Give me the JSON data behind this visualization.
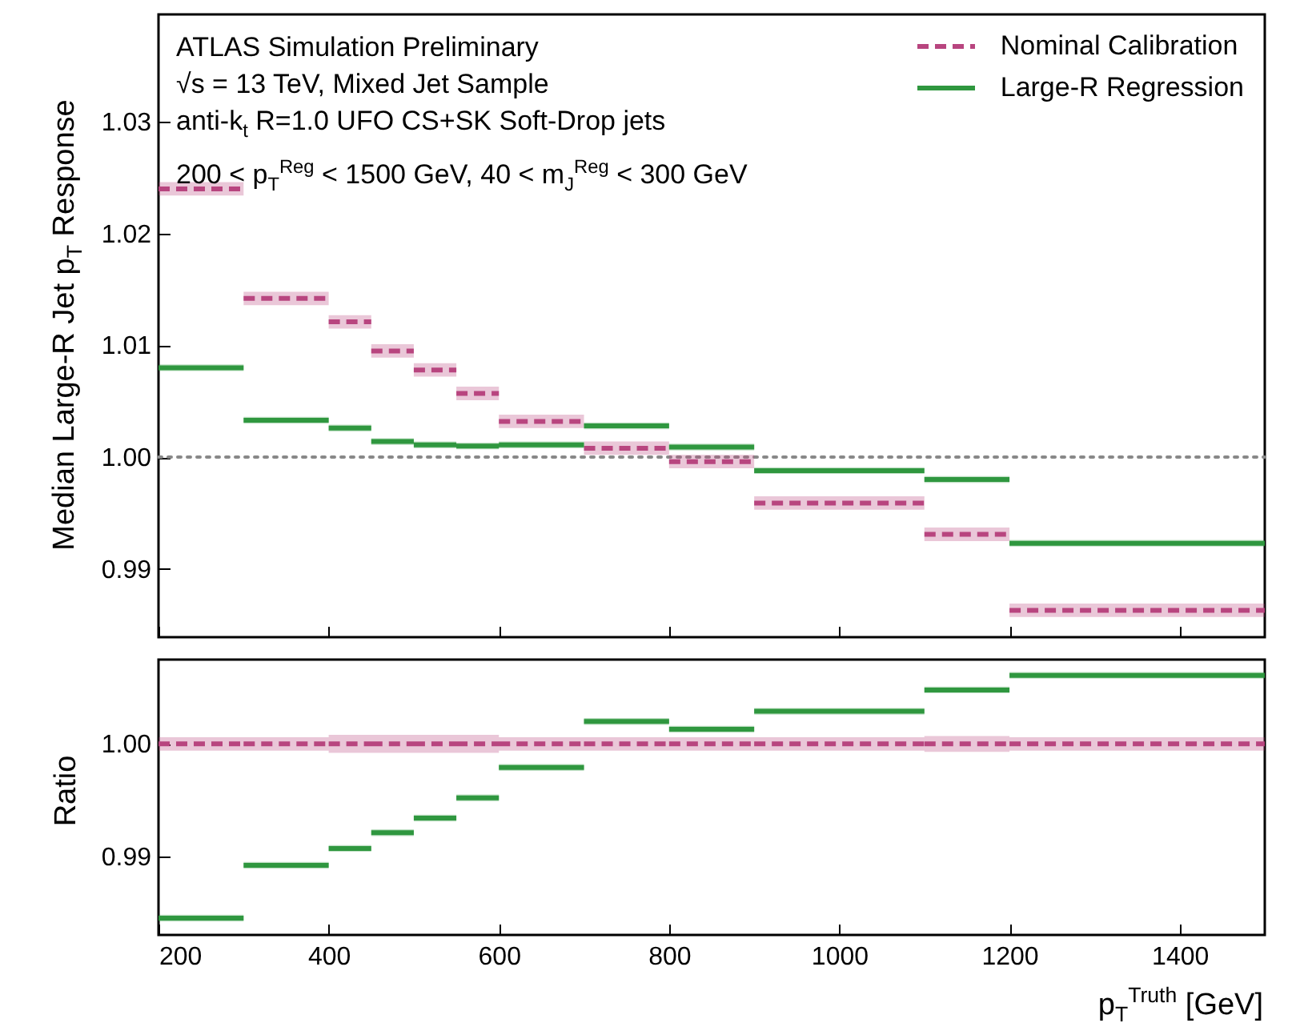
{
  "chart_data": [
    {
      "type": "line",
      "x": [
        200,
        300,
        null,
        300,
        400,
        null,
        400,
        450,
        null,
        450,
        500,
        null,
        500,
        550,
        null,
        550,
        600,
        null,
        600,
        700,
        null,
        700,
        800,
        null,
        800,
        900,
        null,
        900,
        1100,
        null,
        1100,
        1200,
        null,
        1200,
        1500
      ],
      "series": [
        {
          "name": "Nominal Calibration",
          "color": "#b8457f",
          "line_style": "dashed",
          "values": [
            1.024,
            1.024,
            null,
            1.0142,
            1.0142,
            null,
            1.0121,
            1.0121,
            null,
            1.0095,
            1.0095,
            null,
            1.0078,
            1.0078,
            null,
            1.0057,
            1.0057,
            null,
            1.0032,
            1.0032,
            null,
            1.0008,
            1.0008,
            null,
            0.9996,
            0.9996,
            null,
            0.9959,
            0.9959,
            null,
            0.9931,
            0.9931,
            null,
            0.9863,
            0.9863
          ],
          "lower": [
            1.0234,
            1.0234,
            null,
            1.0136,
            1.0136,
            null,
            1.0115,
            1.0115,
            null,
            1.0089,
            1.0089,
            null,
            1.0072,
            1.0072,
            null,
            1.0051,
            1.0051,
            null,
            1.0026,
            1.0026,
            null,
            1.0002,
            1.0002,
            null,
            0.999,
            0.999,
            null,
            0.9953,
            0.9953,
            null,
            0.9925,
            0.9925,
            null,
            0.9857,
            0.9857
          ],
          "upper": [
            1.0246,
            1.0246,
            null,
            1.0148,
            1.0148,
            null,
            1.0127,
            1.0127,
            null,
            1.0101,
            1.0101,
            null,
            1.0084,
            1.0084,
            null,
            1.0063,
            1.0063,
            null,
            1.0038,
            1.0038,
            null,
            1.0014,
            1.0014,
            null,
            1.0002,
            1.0002,
            null,
            0.9965,
            0.9965,
            null,
            0.9937,
            0.9937,
            null,
            0.9869,
            0.9869
          ]
        },
        {
          "name": "Large-R Regression",
          "color": "#2f973f",
          "line_style": "solid",
          "values": [
            1.008,
            1.008,
            null,
            1.0033,
            1.0033,
            null,
            1.0026,
            1.0026,
            null,
            1.0014,
            1.0014,
            null,
            1.0011,
            1.0011,
            null,
            1.001,
            1.001,
            null,
            1.0011,
            1.0011,
            null,
            1.0028,
            1.0028,
            null,
            1.0009,
            1.0009,
            null,
            0.9988,
            0.9988,
            null,
            0.998,
            0.998,
            null,
            0.9923,
            0.9923
          ],
          "lower": [
            1.0077,
            1.0077,
            null,
            1.003,
            1.003,
            null,
            1.0023,
            1.0023,
            null,
            1.0011,
            1.0011,
            null,
            1.0008,
            1.0008,
            null,
            1.0007,
            1.0007,
            null,
            1.0008,
            1.0008,
            null,
            1.0025,
            1.0025,
            null,
            1.0006,
            1.0006,
            null,
            0.9985,
            0.9985,
            null,
            0.9977,
            0.9977,
            null,
            0.992,
            0.992
          ],
          "upper": [
            1.0083,
            1.0083,
            null,
            1.0036,
            1.0036,
            null,
            1.0029,
            1.0029,
            null,
            1.0017,
            1.0017,
            null,
            1.0014,
            1.0014,
            null,
            1.0013,
            1.0013,
            null,
            1.0014,
            1.0014,
            null,
            1.0031,
            1.0031,
            null,
            1.0012,
            1.0012,
            null,
            0.9991,
            0.9991,
            null,
            0.9983,
            0.9983,
            null,
            0.9926,
            0.9926
          ]
        }
      ],
      "xlim": [
        200,
        1500
      ],
      "xticks": [
        200,
        400,
        600,
        800,
        1000,
        1200,
        1400
      ],
      "ylim": [
        0.9839,
        1.0396
      ],
      "yticks": [
        {
          "value": 0.99,
          "label": "0.99"
        },
        {
          "value": 1.0,
          "label": "1.00"
        },
        {
          "value": 1.01,
          "label": "1.01"
        },
        {
          "value": 1.02,
          "label": "1.02"
        },
        {
          "value": 1.03,
          "label": "1.03"
        }
      ],
      "ylabel": "Median Large-R Jet p$_{T}$ Response",
      "annotations": [
        "ATLAS Simulation Preliminary",
        "√s = 13 TeV, Mixed Jet Sample",
        "anti-k$_{t}$ R=1.0 UFO CS+SK Soft-Drop jets",
        "200 < p$_{T}$$^{Reg}$ < 1500 GeV, 40 < m$_{J}$$^{Reg}$ < 300 GeV"
      ],
      "ref_lines": [
        {
          "axis": "y",
          "value": 1.0,
          "color": "#888888",
          "line_style": "dotted"
        }
      ],
      "legend": "top right",
      "tick_labels": "y"
    },
    {
      "type": "line",
      "x": [
        200,
        300,
        null,
        300,
        400,
        null,
        400,
        450,
        null,
        450,
        500,
        null,
        500,
        550,
        null,
        550,
        600,
        null,
        600,
        700,
        null,
        700,
        800,
        null,
        800,
        900,
        null,
        900,
        1100,
        null,
        1100,
        1200,
        null,
        1200,
        1500
      ],
      "series": [
        {
          "color": "#b8457f",
          "line_style": "dashed",
          "values": [
            1.0,
            1.0,
            null,
            1.0,
            1.0,
            null,
            1.0,
            1.0,
            null,
            1.0,
            1.0,
            null,
            1.0,
            1.0,
            null,
            1.0,
            1.0,
            null,
            1.0,
            1.0,
            null,
            1.0,
            1.0,
            null,
            1.0,
            1.0,
            null,
            1.0,
            1.0,
            null,
            1.0,
            1.0,
            null,
            1.0,
            1.0
          ],
          "lower": [
            0.9994,
            0.9994,
            null,
            0.9994,
            0.9994,
            null,
            0.9992,
            0.9992,
            null,
            0.9992,
            0.9992,
            null,
            0.9992,
            0.9992,
            null,
            0.9992,
            0.9992,
            null,
            0.9994,
            0.9994,
            null,
            0.9994,
            0.9994,
            null,
            0.9994,
            0.9994,
            null,
            0.9994,
            0.9994,
            null,
            0.9993,
            0.9993,
            null,
            0.9994,
            0.9994
          ],
          "upper": [
            1.0006,
            1.0006,
            null,
            1.0006,
            1.0006,
            null,
            1.0008,
            1.0008,
            null,
            1.0008,
            1.0008,
            null,
            1.0008,
            1.0008,
            null,
            1.0008,
            1.0008,
            null,
            1.0006,
            1.0006,
            null,
            1.0006,
            1.0006,
            null,
            1.0006,
            1.0006,
            null,
            1.0006,
            1.0006,
            null,
            1.0007,
            1.0007,
            null,
            1.0006,
            1.0006
          ]
        },
        {
          "color": "#2f973f",
          "line_style": "solid",
          "values": [
            0.9845,
            0.9845,
            null,
            0.9892,
            0.9892,
            null,
            0.9907,
            0.9907,
            null,
            0.9921,
            0.9921,
            null,
            0.9934,
            0.9934,
            null,
            0.9952,
            0.9952,
            null,
            0.9979,
            0.9979,
            null,
            1.002,
            1.002,
            null,
            1.0013,
            1.0013,
            null,
            1.0029,
            1.0029,
            null,
            1.0048,
            1.0048,
            null,
            1.0061,
            1.0061
          ],
          "lower": [
            0.9842,
            0.9842,
            null,
            0.9889,
            0.9889,
            null,
            0.9904,
            0.9904,
            null,
            0.9918,
            0.9918,
            null,
            0.9931,
            0.9931,
            null,
            0.9949,
            0.9949,
            null,
            0.9976,
            0.9976,
            null,
            1.0017,
            1.0017,
            null,
            1.001,
            1.001,
            null,
            1.0026,
            1.0026,
            null,
            1.0045,
            1.0045,
            null,
            1.0058,
            1.0058
          ],
          "upper": [
            0.9848,
            0.9848,
            null,
            0.9895,
            0.9895,
            null,
            0.991,
            0.991,
            null,
            0.9924,
            0.9924,
            null,
            0.9937,
            0.9937,
            null,
            0.9955,
            0.9955,
            null,
            0.9982,
            0.9982,
            null,
            1.0023,
            1.0023,
            null,
            1.0016,
            1.0016,
            null,
            1.0032,
            1.0032,
            null,
            1.0051,
            1.0051,
            null,
            1.0064,
            1.0064
          ]
        }
      ],
      "xlim": [
        200,
        1500
      ],
      "xticks": [
        200,
        400,
        600,
        800,
        1000,
        1200,
        1400
      ],
      "ylim": [
        0.983,
        1.0075
      ],
      "yticks": [
        {
          "value": 0.99,
          "label": "0.99"
        },
        {
          "value": 1.0,
          "label": "1.00"
        }
      ],
      "ylabel": "Ratio",
      "xlabel": "p$_{T}$$^{Truth}$ [GeV]"
    }
  ]
}
